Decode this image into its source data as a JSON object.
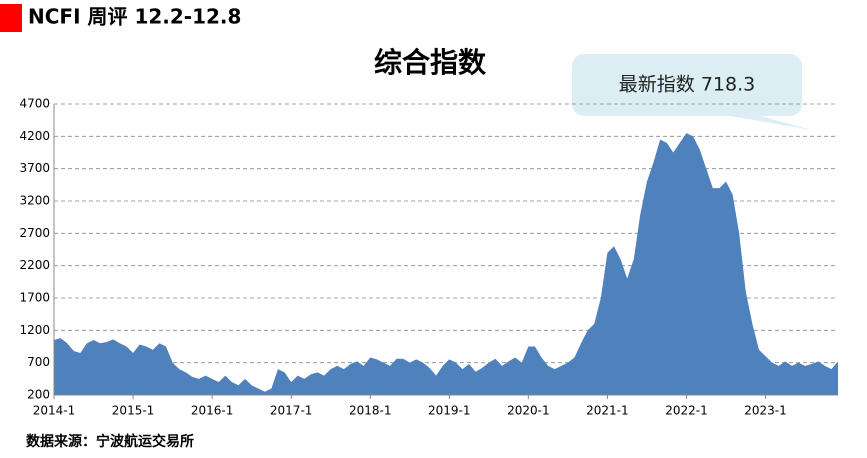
{
  "header": "NCFI 周评 12.2-12.8",
  "chart_data": {
    "type": "area",
    "title": "综合指数",
    "annotation": "最新指数 718.3",
    "source": "数据来源：宁波航运交易所",
    "color": "#4f81bd",
    "grid": true,
    "categories": [
      "2014-1",
      null,
      null,
      null,
      null,
      null,
      null,
      null,
      null,
      null,
      null,
      null,
      "2015-1",
      null,
      null,
      null,
      null,
      null,
      null,
      null,
      null,
      null,
      null,
      null,
      "2016-1",
      null,
      null,
      null,
      null,
      null,
      null,
      null,
      null,
      null,
      null,
      null,
      "2017-1",
      null,
      null,
      null,
      null,
      null,
      null,
      null,
      null,
      null,
      null,
      null,
      "2018-1",
      null,
      null,
      null,
      null,
      null,
      null,
      null,
      null,
      null,
      null,
      null,
      "2019-1",
      null,
      null,
      null,
      null,
      null,
      null,
      null,
      null,
      null,
      null,
      null,
      "2020-1",
      null,
      null,
      null,
      null,
      null,
      null,
      null,
      null,
      null,
      null,
      null,
      "2021-1",
      null,
      null,
      null,
      null,
      null,
      null,
      null,
      null,
      null,
      null,
      null,
      "2022-1",
      null,
      null,
      null,
      null,
      null,
      null,
      null,
      null,
      null,
      null,
      null,
      "2023-1",
      null,
      null,
      null,
      null,
      null,
      null,
      null,
      null,
      null,
      null,
      null
    ],
    "values": [
      1050,
      1080,
      1000,
      880,
      850,
      1000,
      1050,
      1000,
      1020,
      1060,
      1000,
      950,
      850,
      980,
      950,
      900,
      1000,
      950,
      700,
      600,
      550,
      480,
      450,
      500,
      450,
      400,
      500,
      400,
      350,
      450,
      350,
      300,
      250,
      300,
      600,
      550,
      400,
      500,
      450,
      520,
      550,
      500,
      600,
      650,
      600,
      680,
      720,
      650,
      780,
      750,
      700,
      650,
      760,
      760,
      700,
      750,
      700,
      620,
      500,
      650,
      750,
      700,
      600,
      680,
      560,
      620,
      700,
      760,
      650,
      720,
      780,
      700,
      950,
      950,
      780,
      650,
      600,
      650,
      700,
      780,
      1000,
      1200,
      1300,
      1700,
      2400,
      2500,
      2300,
      2000,
      2300,
      3000,
      3500,
      3800,
      4150,
      4100,
      3950,
      4100,
      4250,
      4200,
      4000,
      3700,
      3400,
      3400,
      3500,
      3300,
      2700,
      1800,
      1300,
      900,
      800,
      700,
      650,
      720,
      650,
      700,
      650,
      680,
      720,
      650,
      600,
      718.3
    ],
    "ylim": [
      200,
      4700
    ],
    "yticks": [
      200,
      700,
      1200,
      1700,
      2200,
      2700,
      3200,
      3700,
      4200,
      4700
    ]
  }
}
